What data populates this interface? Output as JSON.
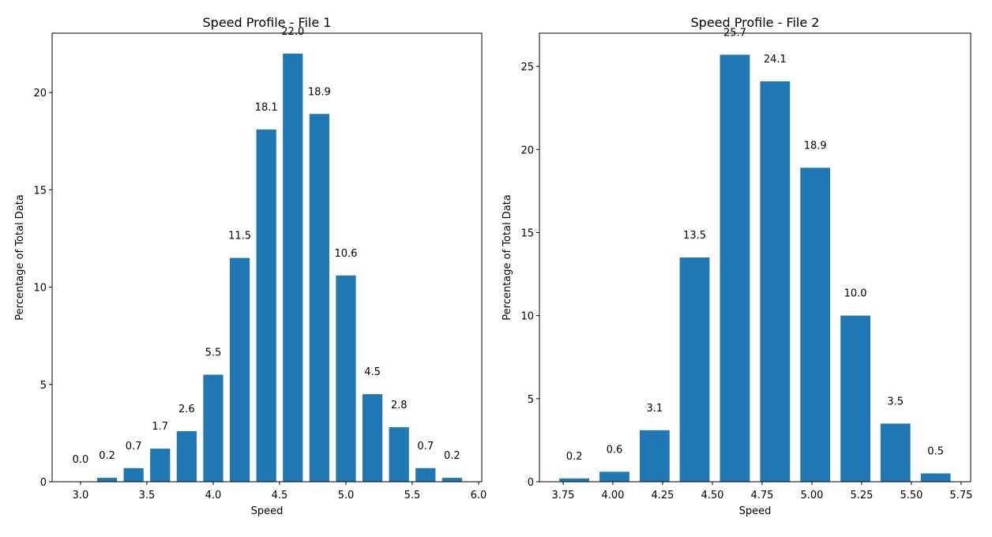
{
  "chart_data": [
    {
      "type": "bar",
      "title": "Speed Profile - File 1",
      "xlabel": "Speed",
      "ylabel": "Percentage of Total Data",
      "color": "#1f77b4",
      "x": [
        3.0,
        3.2,
        3.4,
        3.6,
        3.8,
        4.0,
        4.2,
        4.4,
        4.6,
        4.8,
        5.0,
        5.2,
        5.4,
        5.6,
        5.8
      ],
      "values": [
        0,
        0.2,
        0.7,
        1.7,
        2.6,
        5.5,
        11.5,
        18.1,
        22,
        18.9,
        10.6,
        4.5,
        2.8,
        0.7,
        0.2
      ],
      "value_labels": [
        "0.0",
        "0.2",
        "0.7",
        "1.7",
        "2.6",
        "5.5",
        "11.5",
        "18.1",
        "22.0",
        "18.9",
        "10.6",
        "4.5",
        "2.8",
        "0.7",
        "0.2"
      ],
      "xlim": [
        2.786,
        6.024
      ],
      "xticks": [
        {
          "value": 3,
          "label": "3.0"
        },
        3.5,
        {
          "value": 4,
          "label": "4.0"
        },
        4.5,
        {
          "value": 5,
          "label": "5.0"
        },
        5.5,
        {
          "value": 6,
          "label": "6.0"
        }
      ],
      "ylim": [
        0,
        23.05
      ],
      "yticks": [
        0,
        5,
        10,
        15,
        20
      ]
    },
    {
      "type": "bar",
      "title": "Speed Profile - File 2",
      "xlabel": "Speed",
      "ylabel": "Percentage of Total Data",
      "color": "#1f77b4",
      "x": [
        3.806,
        4.008,
        4.21,
        4.411,
        4.613,
        4.815,
        5.017,
        5.219,
        5.42,
        5.622
      ],
      "values": [
        0.2,
        0.6,
        3.1,
        13.5,
        25.7,
        24.1,
        18.9,
        10,
        3.5,
        0.5
      ],
      "value_labels": [
        "0.2",
        "0.6",
        "3.1",
        "13.5",
        "25.7",
        "24.1",
        "18.9",
        "10.0",
        "3.5",
        "0.5"
      ],
      "xlim": [
        3.631,
        5.798
      ],
      "xticks": [
        3.75,
        {
          "value": 4,
          "label": "4.00"
        },
        4.25,
        {
          "value": 4.5,
          "label": "4.50"
        },
        4.75,
        {
          "value": 5,
          "label": "5.00"
        },
        5.25,
        {
          "value": 5.5,
          "label": "5.50"
        },
        5.75
      ],
      "ylim": [
        0,
        27
      ],
      "yticks": [
        0,
        5,
        10,
        15,
        20,
        25
      ]
    }
  ]
}
